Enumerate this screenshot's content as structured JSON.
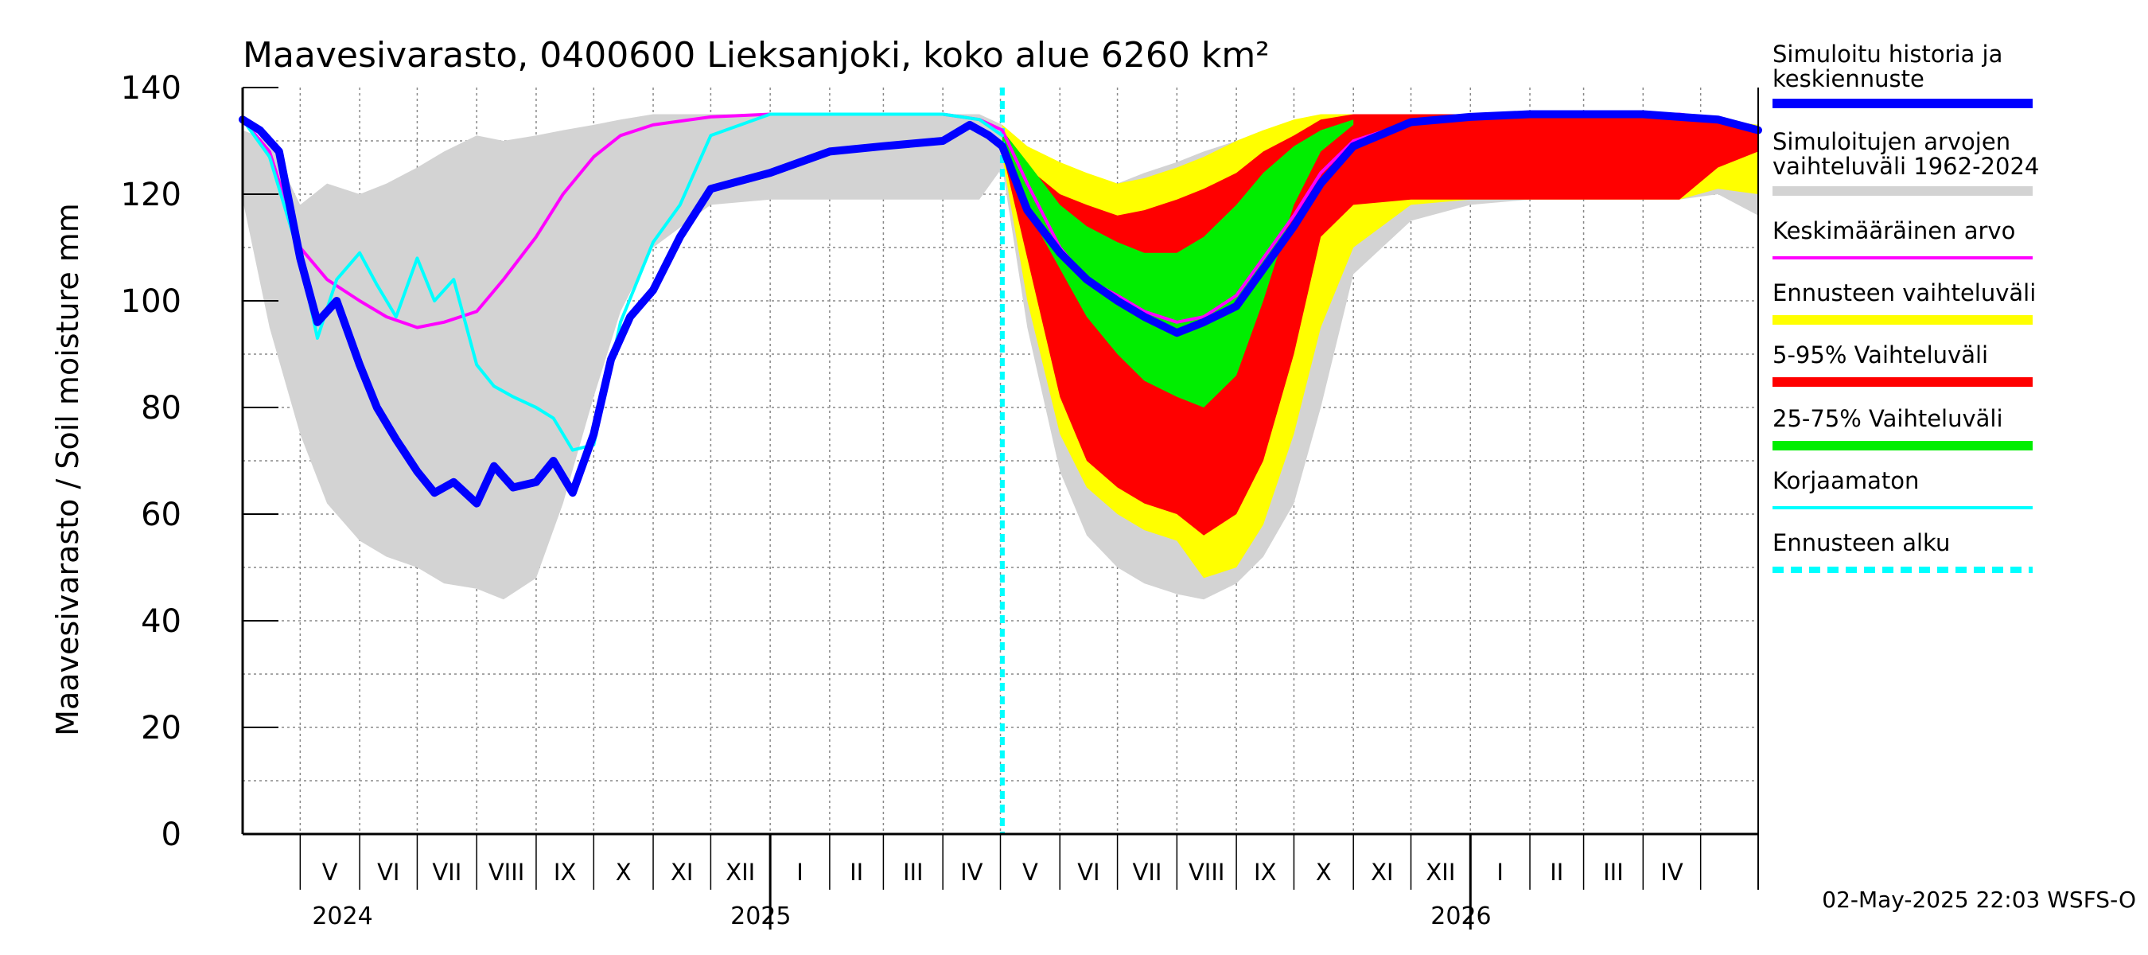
{
  "chart_data": {
    "type": "line",
    "title": "Maavesivarasto, 0400600 Lieksanjoki, koko alue 6260 km²",
    "ylabel": "Maavesivarasto / Soil moisture   mm",
    "ylim": [
      0,
      140
    ],
    "yticks": [
      0,
      20,
      40,
      60,
      80,
      100,
      120,
      140
    ],
    "grid": true,
    "legend_position": "right",
    "x_start": "2024-04-01",
    "x_end": "2026-05-31",
    "forecast_start": "2025-05-02",
    "months": [
      {
        "label": "V",
        "date": "2024-05-01"
      },
      {
        "label": "VI",
        "date": "2024-06-01"
      },
      {
        "label": "VII",
        "date": "2024-07-01"
      },
      {
        "label": "VIII",
        "date": "2024-08-01"
      },
      {
        "label": "IX",
        "date": "2024-09-01"
      },
      {
        "label": "X",
        "date": "2024-10-01"
      },
      {
        "label": "XI",
        "date": "2024-11-01"
      },
      {
        "label": "XII",
        "date": "2024-12-01"
      },
      {
        "label": "I",
        "date": "2025-01-01"
      },
      {
        "label": "II",
        "date": "2025-02-01"
      },
      {
        "label": "III",
        "date": "2025-03-01"
      },
      {
        "label": "IV",
        "date": "2025-04-01"
      },
      {
        "label": "V",
        "date": "2025-05-01"
      },
      {
        "label": "VI",
        "date": "2025-06-01"
      },
      {
        "label": "VII",
        "date": "2025-07-01"
      },
      {
        "label": "VIII",
        "date": "2025-08-01"
      },
      {
        "label": "IX",
        "date": "2025-09-01"
      },
      {
        "label": "X",
        "date": "2025-10-01"
      },
      {
        "label": "XI",
        "date": "2025-11-01"
      },
      {
        "label": "XII",
        "date": "2025-12-01"
      },
      {
        "label": "I",
        "date": "2026-01-01"
      },
      {
        "label": "II",
        "date": "2026-02-01"
      },
      {
        "label": "III",
        "date": "2026-03-01"
      },
      {
        "label": "IV",
        "date": "2026-04-01"
      }
    ],
    "years": [
      {
        "label": "2024",
        "date": "2024-05-01"
      },
      {
        "label": "2025",
        "date": "2025-01-01"
      },
      {
        "label": "2026",
        "date": "2026-01-01"
      }
    ],
    "year_boundaries": [
      "2025-01-01",
      "2026-01-01"
    ],
    "month_boundaries": [
      "2024-05-01",
      "2024-06-01",
      "2024-07-01",
      "2024-08-01",
      "2024-09-01",
      "2024-10-01",
      "2024-11-01",
      "2024-12-01",
      "2025-01-01",
      "2025-02-01",
      "2025-03-01",
      "2025-04-01",
      "2025-05-01",
      "2025-06-01",
      "2025-07-01",
      "2025-08-01",
      "2025-09-01",
      "2025-10-01",
      "2025-11-01",
      "2025-12-01",
      "2026-01-01",
      "2026-02-01",
      "2026-03-01",
      "2026-04-01",
      "2026-05-01"
    ],
    "series": [
      {
        "name": "Simuloitujen arvojen vaihteluväli 1962-2024",
        "kind": "band",
        "color": "#d3d3d3",
        "x": [
          "2024-04-01",
          "2024-04-15",
          "2024-05-01",
          "2024-05-15",
          "2024-06-01",
          "2024-06-15",
          "2024-07-01",
          "2024-07-15",
          "2024-08-01",
          "2024-08-15",
          "2024-09-01",
          "2024-09-15",
          "2024-10-01",
          "2024-10-15",
          "2024-11-01",
          "2024-12-01",
          "2025-01-01",
          "2025-02-01",
          "2025-03-01",
          "2025-04-01",
          "2025-04-20",
          "2025-05-02",
          "2025-05-15",
          "2025-06-01",
          "2025-06-15",
          "2025-07-01",
          "2025-07-15",
          "2025-08-01",
          "2025-08-15",
          "2025-09-01",
          "2025-09-15",
          "2025-10-01",
          "2025-10-15",
          "2025-11-01",
          "2025-12-01",
          "2026-01-01",
          "2026-02-01",
          "2026-03-01",
          "2026-04-01",
          "2026-04-20",
          "2026-05-10",
          "2026-05-31"
        ],
        "low": [
          119,
          95,
          75,
          62,
          55,
          52,
          50,
          47,
          46,
          44,
          48,
          62,
          82,
          98,
          110,
          118,
          119,
          119,
          119,
          119,
          119,
          125,
          95,
          68,
          56,
          50,
          47,
          45,
          44,
          47,
          52,
          62,
          80,
          105,
          115,
          118,
          119,
          119,
          119,
          119,
          120,
          116
        ],
        "high": [
          132,
          130,
          118,
          122,
          120,
          122,
          125,
          128,
          131,
          130,
          131,
          132,
          133,
          134,
          135,
          135,
          135,
          135,
          135,
          135,
          135,
          133,
          128,
          125,
          123,
          122,
          124,
          126,
          128,
          130,
          132,
          133,
          134,
          135,
          135,
          135,
          135,
          135,
          135,
          135,
          134,
          133
        ]
      },
      {
        "name": "Ennusteen vaihteluväli",
        "kind": "band",
        "color": "#ffff00",
        "x": [
          "2025-05-02",
          "2025-05-15",
          "2025-06-01",
          "2025-06-15",
          "2025-07-01",
          "2025-07-15",
          "2025-08-01",
          "2025-08-15",
          "2025-09-01",
          "2025-09-15",
          "2025-10-01",
          "2025-10-15",
          "2025-11-01",
          "2025-12-01",
          "2026-01-01",
          "2026-02-01",
          "2026-03-01",
          "2026-04-01",
          "2026-04-20",
          "2026-05-10",
          "2026-05-31"
        ],
        "low": [
          127,
          100,
          75,
          65,
          60,
          57,
          55,
          48,
          50,
          58,
          75,
          95,
          110,
          118,
          119,
          119,
          119,
          119,
          119,
          121,
          120
        ],
        "high": [
          133,
          129,
          126,
          124,
          122,
          123,
          125,
          127,
          130,
          132,
          134,
          135,
          135,
          135,
          135,
          135,
          135,
          135,
          135,
          134,
          133
        ]
      },
      {
        "name": "5-95% Vaihteluväli",
        "kind": "band",
        "color": "#ff0000",
        "x": [
          "2025-05-02",
          "2025-05-15",
          "2025-06-01",
          "2025-06-15",
          "2025-07-01",
          "2025-07-15",
          "2025-08-01",
          "2025-08-15",
          "2025-09-01",
          "2025-09-15",
          "2025-10-01",
          "2025-10-15",
          "2025-11-01",
          "2025-12-01",
          "2026-01-01",
          "2026-02-01",
          "2026-03-01",
          "2026-04-01",
          "2026-04-20",
          "2026-05-10",
          "2026-05-31"
        ],
        "low": [
          128,
          108,
          82,
          70,
          65,
          62,
          60,
          56,
          60,
          70,
          90,
          112,
          118,
          119,
          119,
          119,
          119,
          119,
          119,
          125,
          128
        ],
        "high": [
          132,
          125,
          120,
          118,
          116,
          117,
          119,
          121,
          124,
          128,
          131,
          134,
          135,
          135,
          135,
          135,
          135,
          135,
          135,
          134,
          132
        ]
      },
      {
        "name": "25-75% Vaihteluväli",
        "kind": "band",
        "color": "#00ee00",
        "x": [
          "2025-05-02",
          "2025-05-15",
          "2025-06-01",
          "2025-06-15",
          "2025-07-01",
          "2025-07-15",
          "2025-08-01",
          "2025-08-15",
          "2025-09-01",
          "2025-09-15",
          "2025-10-01",
          "2025-10-15",
          "2025-11-01"
        ],
        "low": [
          130,
          117,
          106,
          97,
          90,
          85,
          82,
          80,
          86,
          100,
          118,
          128,
          133
        ],
        "high": [
          132,
          126,
          118,
          114,
          111,
          109,
          109,
          112,
          118,
          124,
          129,
          132,
          134
        ]
      },
      {
        "name": "Keskimääräinen arvo",
        "kind": "line",
        "color": "#ff00ff",
        "width": 4,
        "x": [
          "2024-04-01",
          "2024-04-15",
          "2024-05-01",
          "2024-05-15",
          "2024-06-01",
          "2024-06-15",
          "2024-07-01",
          "2024-07-15",
          "2024-08-01",
          "2024-08-15",
          "2024-09-01",
          "2024-09-15",
          "2024-10-01",
          "2024-10-15",
          "2024-11-01",
          "2024-12-01",
          "2025-01-01",
          "2025-02-01",
          "2025-03-01",
          "2025-04-01",
          "2025-04-20",
          "2025-05-02",
          "2025-05-15",
          "2025-06-01",
          "2025-06-15",
          "2025-07-01",
          "2025-07-15",
          "2025-08-01",
          "2025-08-15",
          "2025-09-01",
          "2025-09-15",
          "2025-10-01",
          "2025-10-15",
          "2025-11-01",
          "2025-12-01",
          "2026-01-01",
          "2026-02-01",
          "2026-03-01",
          "2026-04-01",
          "2026-04-20",
          "2026-05-10",
          "2026-05-31"
        ],
        "values": [
          134,
          128,
          110,
          104,
          100,
          97,
          95,
          96,
          98,
          104,
          112,
          120,
          127,
          131,
          133,
          134.5,
          135,
          135,
          135,
          135,
          134,
          132,
          122,
          110,
          104,
          101,
          98,
          96,
          97,
          101,
          108,
          116,
          124,
          130,
          133.5,
          134.5,
          135,
          135,
          135,
          135,
          134,
          132
        ]
      },
      {
        "name": "Korjaamaton",
        "kind": "line",
        "color": "#00ffff",
        "width": 4,
        "x": [
          "2024-04-01",
          "2024-04-15",
          "2024-05-01",
          "2024-05-10",
          "2024-05-20",
          "2024-06-01",
          "2024-06-10",
          "2024-06-20",
          "2024-07-01",
          "2024-07-10",
          "2024-07-20",
          "2024-08-01",
          "2024-08-10",
          "2024-08-20",
          "2024-09-01",
          "2024-09-10",
          "2024-09-20",
          "2024-10-01",
          "2024-10-15",
          "2024-11-01",
          "2024-11-15",
          "2024-12-01",
          "2025-01-01",
          "2025-02-01",
          "2025-03-01",
          "2025-04-01",
          "2025-04-20",
          "2025-05-02"
        ],
        "values": [
          134,
          127,
          108,
          93,
          104,
          109,
          103,
          97,
          108,
          100,
          104,
          88,
          84,
          82,
          80,
          78,
          72,
          73,
          96,
          111,
          118,
          131,
          135,
          135,
          135,
          135,
          134,
          131
        ]
      },
      {
        "name": "Simuloitu historia ja keskiennuste",
        "kind": "line",
        "color": "#0000ff",
        "width": 10,
        "x": [
          "2024-04-01",
          "2024-04-10",
          "2024-04-20",
          "2024-05-01",
          "2024-05-10",
          "2024-05-20",
          "2024-06-01",
          "2024-06-10",
          "2024-06-20",
          "2024-07-01",
          "2024-07-10",
          "2024-07-20",
          "2024-08-01",
          "2024-08-10",
          "2024-08-20",
          "2024-09-01",
          "2024-09-10",
          "2024-09-20",
          "2024-10-01",
          "2024-10-10",
          "2024-10-20",
          "2024-11-01",
          "2024-11-15",
          "2024-12-01",
          "2025-01-01",
          "2025-02-01",
          "2025-03-01",
          "2025-04-01",
          "2025-04-15",
          "2025-04-25",
          "2025-05-02",
          "2025-05-15",
          "2025-06-01",
          "2025-06-15",
          "2025-07-01",
          "2025-07-15",
          "2025-08-01",
          "2025-08-15",
          "2025-09-01",
          "2025-09-15",
          "2025-10-01",
          "2025-10-15",
          "2025-11-01",
          "2025-12-01",
          "2026-01-01",
          "2026-02-01",
          "2026-03-01",
          "2026-04-01",
          "2026-04-20",
          "2026-05-10",
          "2026-05-31"
        ],
        "values": [
          134,
          132,
          128,
          108,
          96,
          100,
          88,
          80,
          74,
          68,
          64,
          66,
          62,
          69,
          65,
          66,
          70,
          64,
          75,
          89,
          97,
          102,
          112,
          121,
          124,
          128,
          129,
          130,
          133,
          131,
          129,
          117,
          109,
          104,
          100,
          97,
          94,
          96,
          99,
          106,
          114,
          122,
          129,
          133.5,
          134.5,
          135,
          135,
          135,
          134.5,
          134,
          132
        ]
      }
    ],
    "legend": [
      {
        "label": "Simuloitu historia ja keskiennuste",
        "color": "#0000ff",
        "style": "thick"
      },
      {
        "label": "Simuloitujen arvojen vaihteluväli 1962-2024",
        "color": "#d3d3d3",
        "style": "thick"
      },
      {
        "label": "Keskimääräinen arvo",
        "color": "#ff00ff",
        "style": "thin"
      },
      {
        "label": "Ennusteen vaihteluväli",
        "color": "#ffff00",
        "style": "thick"
      },
      {
        "label": "5-95% Vaihteluväli",
        "color": "#ff0000",
        "style": "thick"
      },
      {
        "label": "25-75% Vaihteluväli",
        "color": "#00ee00",
        "style": "thick"
      },
      {
        "label": "Korjaamaton",
        "color": "#00ffff",
        "style": "thin"
      },
      {
        "label": "Ennusteen alku",
        "color": "#00ffff",
        "style": "dashed"
      }
    ],
    "timestamp": "02-May-2025 22:03 WSFS-O"
  }
}
